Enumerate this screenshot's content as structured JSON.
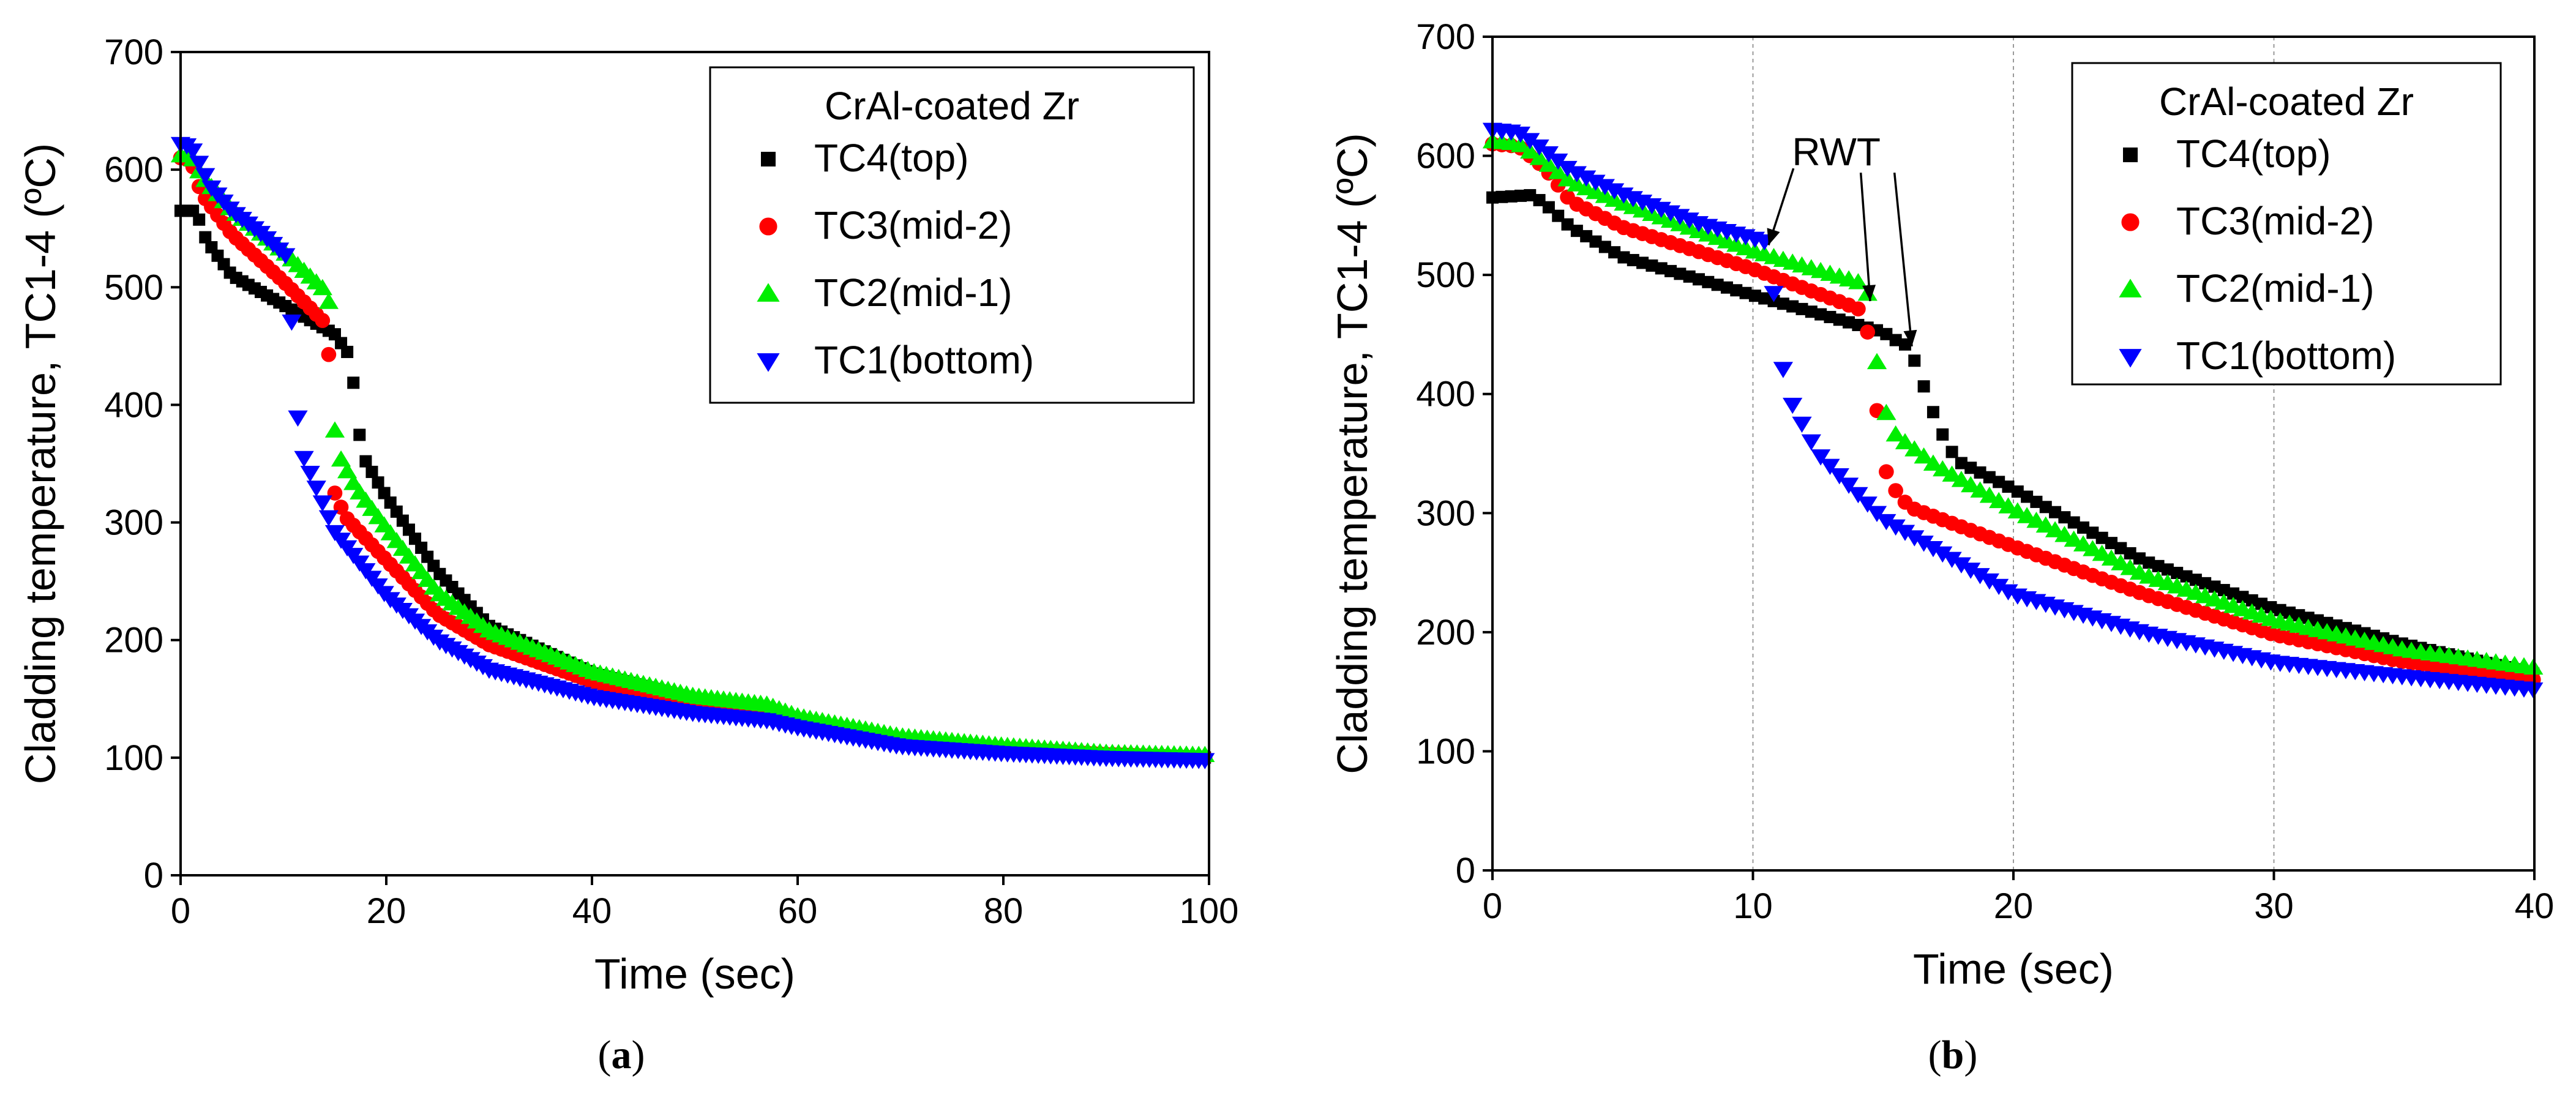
{
  "chart_data": [
    {
      "panel": "a",
      "type": "scatter",
      "caption": "(a)",
      "caption_letter": "a",
      "xlabel": "Time (sec)",
      "ylabel": "Cladding temperature,  TC1-4 (ºC)",
      "xlim": [
        0,
        100
      ],
      "ylim": [
        0,
        700
      ],
      "xticks": [
        0,
        20,
        40,
        60,
        80,
        100
      ],
      "yticks": [
        0,
        100,
        200,
        300,
        400,
        500,
        600,
        700
      ],
      "grid": false,
      "legend_title": "CrAl-coated Zr",
      "legend_position": "top-right",
      "series": [
        {
          "name": "TC4(top)",
          "marker": "square",
          "color": "#000000",
          "x_step": 0.6,
          "keypoints": [
            [
              0,
              565
            ],
            [
              1.5,
              565
            ],
            [
              2.5,
              540
            ],
            [
              5,
              510
            ],
            [
              10,
              485
            ],
            [
              15,
              460
            ],
            [
              16.2,
              445
            ],
            [
              16.7,
              428
            ],
            [
              17.2,
              382
            ],
            [
              18,
              352
            ],
            [
              20,
              322
            ],
            [
              25,
              258
            ],
            [
              30,
              212
            ],
            [
              40,
              172
            ],
            [
              50,
              150
            ],
            [
              57,
              140
            ],
            [
              60,
              131
            ],
            [
              70,
              115
            ],
            [
              80,
              108
            ],
            [
              90,
              103
            ],
            [
              100,
              100
            ]
          ]
        },
        {
          "name": "TC3(mid-2)",
          "marker": "circle",
          "color": "#ff0000",
          "x_step": 0.6,
          "keypoints": [
            [
              0,
              610
            ],
            [
              1,
              608
            ],
            [
              2,
              580
            ],
            [
              5,
              545
            ],
            [
              10,
              505
            ],
            [
              14,
              470
            ],
            [
              14.5,
              436
            ],
            [
              15,
              325
            ],
            [
              16,
              305
            ],
            [
              20,
              268
            ],
            [
              25,
              222
            ],
            [
              30,
              196
            ],
            [
              40,
              165
            ],
            [
              50,
              147
            ],
            [
              57,
              140
            ],
            [
              60,
              132
            ],
            [
              70,
              115
            ],
            [
              80,
              108
            ],
            [
              90,
              103
            ],
            [
              100,
              100
            ]
          ]
        },
        {
          "name": "TC2(mid-1)",
          "marker": "triangle-up",
          "color": "#00ee00",
          "x_step": 0.6,
          "keypoints": [
            [
              0,
              612
            ],
            [
              1,
              612
            ],
            [
              2,
              595
            ],
            [
              5,
              565
            ],
            [
              10,
              530
            ],
            [
              14.3,
              495
            ],
            [
              14.6,
              472
            ],
            [
              15,
              378
            ],
            [
              15.5,
              355
            ],
            [
              17,
              330
            ],
            [
              20,
              295
            ],
            [
              25,
              240
            ],
            [
              30,
              208
            ],
            [
              40,
              173
            ],
            [
              50,
              152
            ],
            [
              57,
              145
            ],
            [
              60,
              135
            ],
            [
              70,
              118
            ],
            [
              80,
              110
            ],
            [
              90,
              104
            ],
            [
              100,
              102
            ]
          ]
        },
        {
          "name": "TC1(bottom)",
          "marker": "triangle-down",
          "color": "#0000ff",
          "x_step": 0.6,
          "keypoints": [
            [
              0,
              622
            ],
            [
              1,
              620
            ],
            [
              3,
              585
            ],
            [
              5,
              565
            ],
            [
              8,
              545
            ],
            [
              10.5,
              525
            ],
            [
              11,
              435
            ],
            [
              11.5,
              378
            ],
            [
              12,
              355
            ],
            [
              15,
              292
            ],
            [
              20,
              238
            ],
            [
              25,
              200
            ],
            [
              30,
              175
            ],
            [
              40,
              152
            ],
            [
              50,
              138
            ],
            [
              57,
              132
            ],
            [
              60,
              126
            ],
            [
              70,
              110
            ],
            [
              80,
              104
            ],
            [
              90,
              100
            ],
            [
              100,
              98
            ]
          ]
        }
      ]
    },
    {
      "panel": "b",
      "type": "scatter",
      "caption": "(b)",
      "caption_letter": "b",
      "xlabel": "Time (sec)",
      "ylabel": "Cladding temperature,  TC1-4 (ºC)",
      "xlim": [
        0,
        40
      ],
      "ylim": [
        0,
        700
      ],
      "xticks": [
        0,
        10,
        20,
        30,
        40
      ],
      "yticks": [
        0,
        100,
        200,
        300,
        400,
        500,
        600,
        700
      ],
      "grid": true,
      "grid_x": [
        10,
        20,
        30
      ],
      "legend_title": "CrAl-coated Zr",
      "legend_position": "top-right",
      "annotation": {
        "text": "RWT",
        "text_x": 13.2,
        "text_y": 592,
        "arrow_targets": [
          [
            10.6,
            525
          ],
          [
            14.5,
            478
          ],
          [
            16.1,
            440
          ]
        ]
      },
      "series": [
        {
          "name": "TC4(top)",
          "marker": "square",
          "color": "#000000",
          "x_step": 0.36,
          "keypoints": [
            [
              0,
              565
            ],
            [
              1.5,
              567
            ],
            [
              2,
              560
            ],
            [
              3,
              540
            ],
            [
              5,
              515
            ],
            [
              10,
              483
            ],
            [
              15,
              452
            ],
            [
              15.5,
              445
            ],
            [
              16,
              440
            ],
            [
              16.5,
              410
            ],
            [
              17,
              380
            ],
            [
              17.5,
              355
            ],
            [
              18,
              342
            ],
            [
              20,
              320
            ],
            [
              25,
              260
            ],
            [
              30,
              220
            ],
            [
              35,
              190
            ],
            [
              40,
              165
            ]
          ]
        },
        {
          "name": "TC3(mid-2)",
          "marker": "circle",
          "color": "#ff0000",
          "x_step": 0.36,
          "keypoints": [
            [
              0,
              610
            ],
            [
              1,
              608
            ],
            [
              2,
              590
            ],
            [
              3,
              562
            ],
            [
              5,
              540
            ],
            [
              10,
              505
            ],
            [
              14,
              472
            ],
            [
              14.3,
              468
            ],
            [
              14.5,
              436
            ],
            [
              15,
              340
            ],
            [
              15.5,
              318
            ],
            [
              16,
              305
            ],
            [
              20,
              272
            ],
            [
              25,
              232
            ],
            [
              30,
              198
            ],
            [
              35,
              175
            ],
            [
              40,
              160
            ]
          ]
        },
        {
          "name": "TC2(mid-1)",
          "marker": "triangle-up",
          "color": "#00ee00",
          "x_step": 0.36,
          "keypoints": [
            [
              0,
              612
            ],
            [
              1,
              610
            ],
            [
              2,
              595
            ],
            [
              3,
              578
            ],
            [
              5,
              560
            ],
            [
              10,
              520
            ],
            [
              14.3,
              492
            ],
            [
              14.5,
              476
            ],
            [
              14.9,
              400
            ],
            [
              15.2,
              378
            ],
            [
              15.5,
              365
            ],
            [
              17,
              340
            ],
            [
              20,
              303
            ],
            [
              25,
              248
            ],
            [
              30,
              210
            ],
            [
              35,
              185
            ],
            [
              40,
              170
            ]
          ]
        },
        {
          "name": "TC1(bottom)",
          "marker": "triangle-down",
          "color": "#0000ff",
          "x_step": 0.36,
          "keypoints": [
            [
              0,
              622
            ],
            [
              1,
              620
            ],
            [
              2,
              605
            ],
            [
              3,
              588
            ],
            [
              5,
              568
            ],
            [
              8,
              543
            ],
            [
              10.5,
              528
            ],
            [
              10.7,
              510
            ],
            [
              11,
              435
            ],
            [
              11.5,
              392
            ],
            [
              12,
              370
            ],
            [
              12.5,
              350
            ],
            [
              15,
              295
            ],
            [
              20,
              232
            ],
            [
              25,
              200
            ],
            [
              30,
              175
            ],
            [
              35,
              163
            ],
            [
              40,
              152
            ]
          ]
        }
      ]
    }
  ]
}
